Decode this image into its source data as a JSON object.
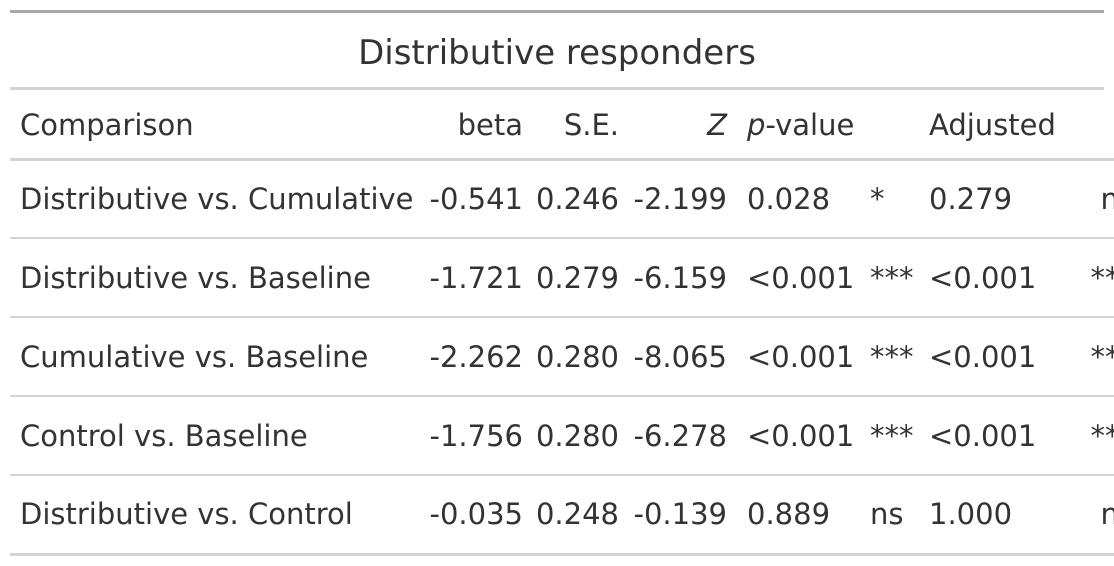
{
  "table": {
    "title": "Distributive responders",
    "headers": {
      "comparison": "Comparison",
      "beta": "beta",
      "se": "S.E.",
      "z": "Z",
      "p_italic": "p",
      "p_rest": "-value",
      "significance": "",
      "adjusted": "Adjusted",
      "adjusted_significance": ""
    },
    "rows": [
      {
        "comparison": "Distributive vs. Cumulative",
        "beta": "-0.541",
        "se": "0.246",
        "z": "-2.199",
        "p_value": "0.028",
        "significance": "*",
        "adjusted": "0.279",
        "adjusted_significance": "ns"
      },
      {
        "comparison": "Distributive vs. Baseline",
        "beta": "-1.721",
        "se": "0.279",
        "z": "-6.159",
        "p_value": "<0.001",
        "significance": "***",
        "adjusted": "<0.001",
        "adjusted_significance": "***"
      },
      {
        "comparison": "Cumulative vs. Baseline",
        "beta": "-2.262",
        "se": "0.280",
        "z": "-8.065",
        "p_value": "<0.001",
        "significance": "***",
        "adjusted": "<0.001",
        "adjusted_significance": "***"
      },
      {
        "comparison": "Control vs. Baseline",
        "beta": "-1.756",
        "se": "0.280",
        "z": "-6.278",
        "p_value": "<0.001",
        "significance": "***",
        "adjusted": "<0.001",
        "adjusted_significance": "***"
      },
      {
        "comparison": "Distributive vs. Control",
        "beta": "-0.035",
        "se": "0.248",
        "z": "-0.139",
        "p_value": "0.889",
        "significance": "ns",
        "adjusted": "1.000",
        "adjusted_significance": "ns"
      }
    ]
  },
  "colors": {
    "text": "#333333",
    "top_rule": "#a8a8a8",
    "rules": "#d3d3d3",
    "background": "#ffffff"
  }
}
